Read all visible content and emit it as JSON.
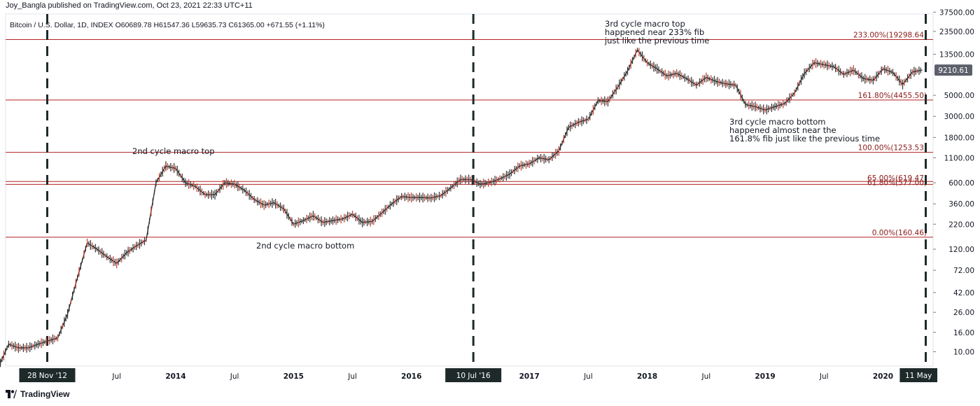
{
  "header": {
    "published": "Joy_Bangla published on TradingView.com, Oct 23, 2021 22:33 UTC+11",
    "symbol": "Bitcoin / U.S. Dollar, 1D, INDEX",
    "o_label": "O",
    "o_value": "60689.78",
    "h_label": "H",
    "h_value": "61547.36",
    "l_label": "L",
    "l_value": "59635.73",
    "c_label": "C",
    "c_value": "61365.00",
    "change": "+671.55 (+1.11%)"
  },
  "footer": {
    "brand": "TradingView"
  },
  "colors": {
    "fib_line": "#b22222",
    "fib_text": "#8b1a1a",
    "candle": "#333333",
    "candle_up_tint": "#c0392b",
    "dashed_line": "#1e2a2a",
    "tag_bg": "#1e2a2a",
    "price_tag_bg": "#5d606b"
  },
  "chart_data": {
    "type": "line",
    "title": "",
    "y_scale": "log",
    "y_axis_ticks": [
      "37500.00",
      "23500.00",
      "13500.00",
      "9210.61",
      "5000.00",
      "3000.00",
      "1800.00",
      "1100.00",
      "600.00",
      "360.00",
      "220.00",
      "120.00",
      "72.00",
      "42.00",
      "26.00",
      "16.00",
      "10.00"
    ],
    "x_axis_ticks": [
      "Jul",
      "2014",
      "Jul",
      "2015",
      "Jul",
      "2016",
      "2017",
      "Jul",
      "2018",
      "Jul",
      "2019",
      "Jul",
      "2020"
    ],
    "x_axis_highlight_tags": [
      "28 Nov '12",
      "10 Jul '16",
      "11 May"
    ],
    "current_price_tag": "9210.61",
    "fib_levels": [
      {
        "label": "233.00%(19298.64)",
        "price": 19298.64
      },
      {
        "label": "161.80%(4455.50)",
        "price": 4455.5
      },
      {
        "label": "100.00%(1253.53)",
        "price": 1253.53
      },
      {
        "label": "65.00%(619.47)",
        "price": 619.47
      },
      {
        "label": "61.80%(577.00)",
        "price": 577.0
      },
      {
        "label": "0.00%(160.46)",
        "price": 160.46
      }
    ],
    "vertical_events": [
      "28 Nov '12",
      "10 Jul '16",
      "11 May"
    ],
    "annotations": [
      {
        "lines": [
          "3rd cycle macro top",
          "happened near 233% fib",
          "just like the previous time"
        ]
      },
      {
        "lines": [
          "2nd cycle macro top"
        ]
      },
      {
        "lines": [
          "3rd cycle macro bottom",
          "happened almost near the",
          "161.8% fib just like the previous time"
        ]
      },
      {
        "lines": [
          "2nd cycle macro bottom"
        ]
      }
    ],
    "series": [
      {
        "x": [
          "2012-07",
          "2012-08",
          "2012-09",
          "2012-10",
          "2012-11",
          "2012-12",
          "2013-01",
          "2013-02",
          "2013-03",
          "2013-04",
          "2013-05",
          "2013-06",
          "2013-07",
          "2013-08",
          "2013-09",
          "2013-10",
          "2013-11",
          "2013-12",
          "2014-01",
          "2014-02",
          "2014-03",
          "2014-04",
          "2014-05",
          "2014-06",
          "2014-07",
          "2014-08",
          "2014-09",
          "2014-10",
          "2014-11",
          "2014-12",
          "2015-01",
          "2015-02",
          "2015-03",
          "2015-04",
          "2015-05",
          "2015-06",
          "2015-07",
          "2015-08",
          "2015-09",
          "2015-10",
          "2015-11",
          "2015-12",
          "2016-01",
          "2016-02",
          "2016-03",
          "2016-04",
          "2016-05",
          "2016-06",
          "2016-07",
          "2016-08",
          "2016-09",
          "2016-10",
          "2016-11",
          "2016-12",
          "2017-01",
          "2017-02",
          "2017-03",
          "2017-04",
          "2017-05",
          "2017-06",
          "2017-07",
          "2017-08",
          "2017-09",
          "2017-10",
          "2017-11",
          "2017-12",
          "2018-01",
          "2018-02",
          "2018-03",
          "2018-04",
          "2018-05",
          "2018-06",
          "2018-07",
          "2018-08",
          "2018-09",
          "2018-10",
          "2018-11",
          "2018-12",
          "2019-01",
          "2019-02",
          "2019-03",
          "2019-04",
          "2019-05",
          "2019-06",
          "2019-07",
          "2019-08",
          "2019-09",
          "2019-10",
          "2019-11",
          "2019-12",
          "2020-01",
          "2020-02",
          "2020-03",
          "2020-04",
          "2020-05"
        ],
        "values": [
          7,
          12,
          11,
          11,
          12,
          13,
          14,
          25,
          60,
          140,
          120,
          100,
          85,
          110,
          130,
          150,
          600,
          900,
          850,
          600,
          550,
          450,
          450,
          600,
          580,
          500,
          400,
          350,
          370,
          320,
          220,
          240,
          270,
          230,
          240,
          250,
          280,
          230,
          235,
          290,
          360,
          430,
          420,
          420,
          415,
          440,
          530,
          650,
          650,
          580,
          605,
          660,
          740,
          900,
          950,
          1100,
          1050,
          1300,
          2300,
          2600,
          2800,
          4400,
          4300,
          6100,
          9000,
          15000,
          11000,
          9500,
          8000,
          8500,
          7500,
          6400,
          7700,
          7000,
          6600,
          6400,
          4000,
          3800,
          3500,
          3800,
          4100,
          5300,
          8500,
          11000,
          10500,
          10000,
          8300,
          9200,
          7500,
          7200,
          9500,
          8700,
          6500,
          8800,
          9210
        ]
      }
    ]
  }
}
